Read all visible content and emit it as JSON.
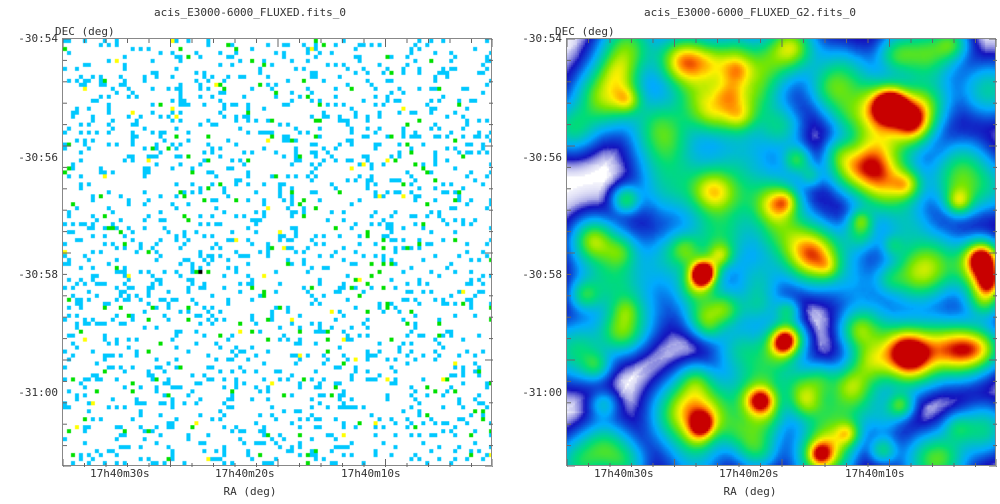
{
  "panels": [
    {
      "title": "acis_E3000-6000_FLUXED.fits_0",
      "ylabel": "DEC (deg)",
      "xlabel": "RA (deg)",
      "yticks": [
        "-30:54",
        "-30:56",
        "-30:58",
        "-31:00"
      ],
      "xticks": [
        "17h40m30s",
        "17h40m20s",
        "17h40m10s"
      ],
      "style": "sparse-counts"
    },
    {
      "title": "acis_E3000-6000_FLUXED_G2.fits_0",
      "ylabel": "DEC (deg)",
      "xlabel": "RA (deg)",
      "yticks": [
        "-30:54",
        "-30:56",
        "-30:58",
        "-31:00"
      ],
      "xticks": [
        "17h40m30s",
        "17h40m20s",
        "17h40m10s"
      ],
      "style": "gaussian-smoothed"
    }
  ],
  "colors": {
    "low": "#00c8ff",
    "mid": "#00e000",
    "high": "#ffff00",
    "peak": "#ff2000",
    "deep": "#1010c0"
  }
}
